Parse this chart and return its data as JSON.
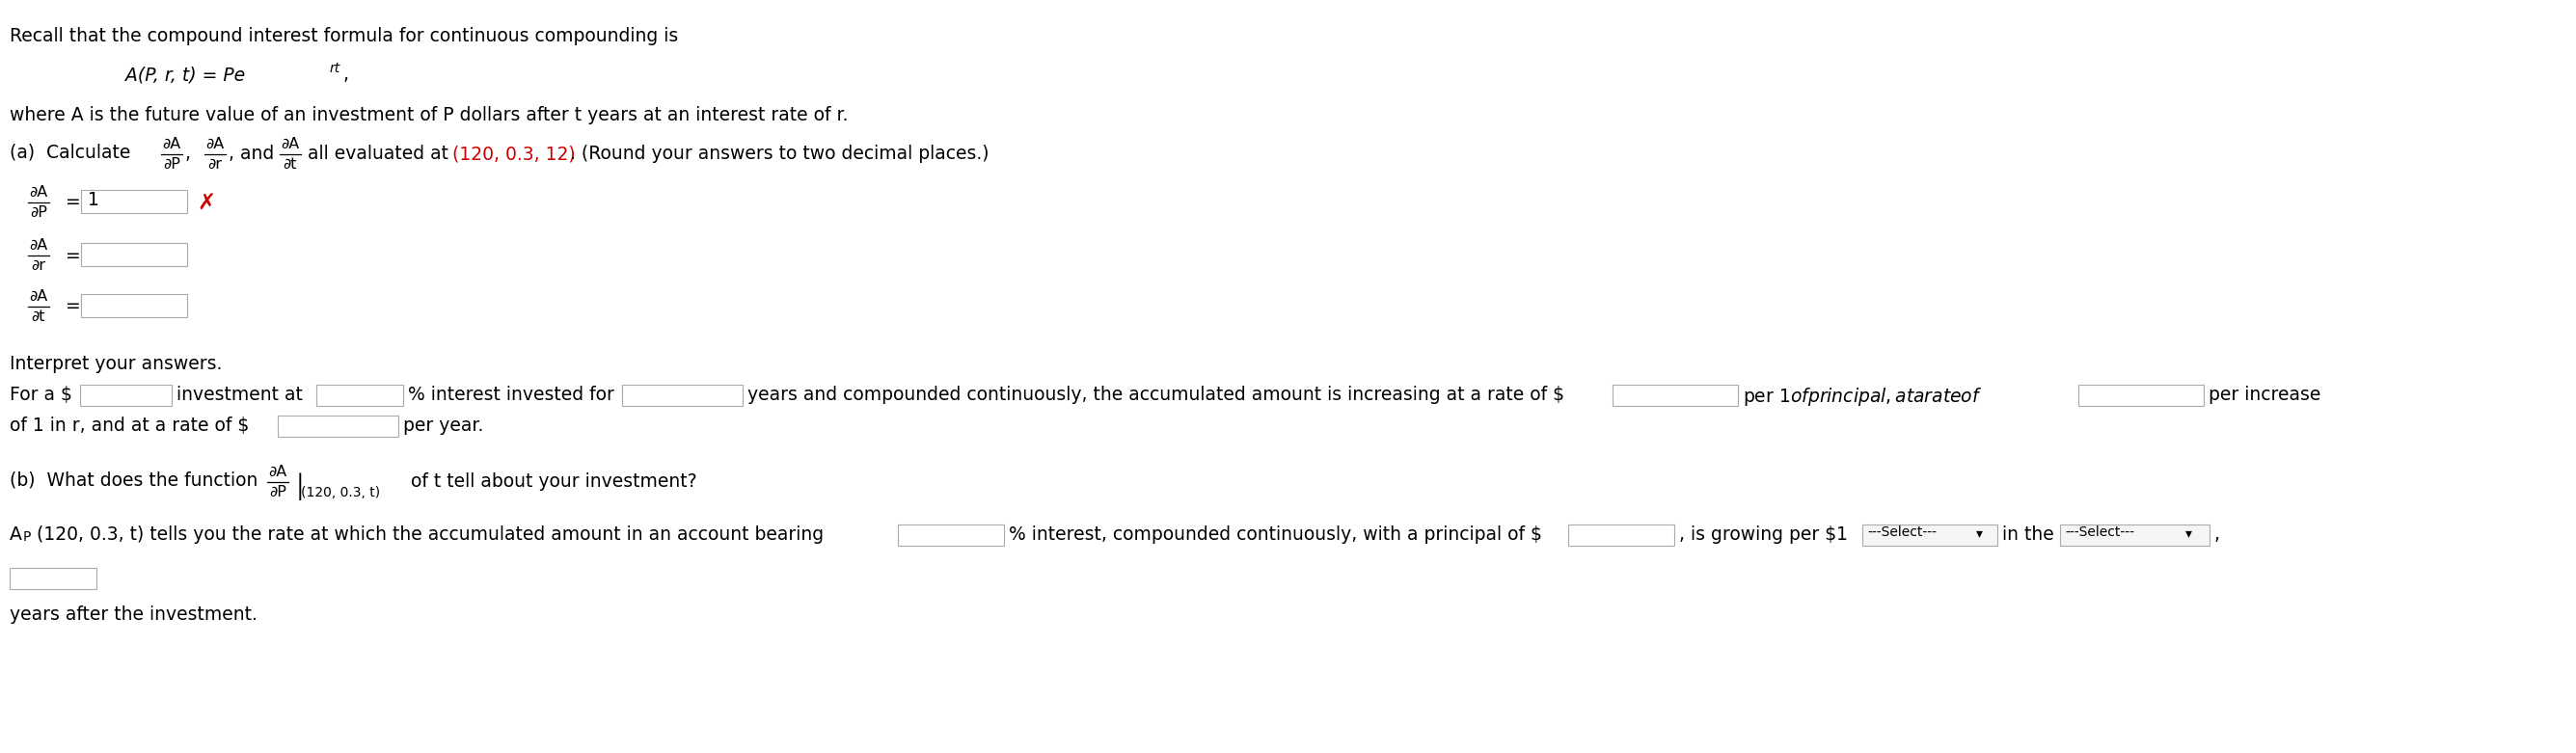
{
  "bg_color": "#ffffff",
  "text_color": "#000000",
  "red_color": "#cc0000",
  "gray_color": "#888888",
  "line1": "Recall that the compound interest formula for continuous compounding is",
  "line3": "where A is the future value of an investment of P dollars after t years at an interest rate of r.",
  "part_a_point": "(120, 0.3, 12)",
  "input_value_1": "1",
  "fs": 13.5,
  "fs_small": 11.5,
  "fs_tiny": 10.0
}
